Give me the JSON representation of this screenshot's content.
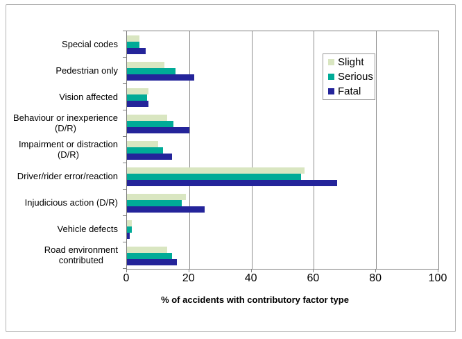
{
  "chart_data": {
    "type": "bar",
    "orientation": "horizontal",
    "title": "",
    "xlabel": "% of accidents with contributory factor type",
    "ylabel": "",
    "xlim": [
      0,
      100
    ],
    "x_ticks": [
      0,
      20,
      40,
      60,
      80,
      100
    ],
    "grid": "vertical",
    "legend_position": "inside-upper-right",
    "categories": [
      "Special codes",
      "Pedestrian only",
      "Vision affected",
      "Behaviour or inexperience (D/R)",
      "Impairment or distraction (D/R)",
      "Driver/rider error/reaction",
      "Injudicious action (D/R)",
      "Vehicle defects",
      "Road environment contributed"
    ],
    "category_display_lines": [
      [
        "Special codes"
      ],
      [
        "Pedestrian only"
      ],
      [
        "Vision affected"
      ],
      [
        "Behaviour or inexperience",
        "(D/R)"
      ],
      [
        "Impairment or distraction",
        "(D/R)"
      ],
      [
        "Driver/rider error/reaction"
      ],
      [
        "Injudicious action (D/R)"
      ],
      [
        "Vehicle defects"
      ],
      [
        "Road environment",
        "contributed"
      ]
    ],
    "series": [
      {
        "name": "Slight",
        "color": "#d9e6c1",
        "values": [
          4,
          12,
          7,
          13,
          10,
          57,
          19,
          1.5,
          13
        ]
      },
      {
        "name": "Serious",
        "color": "#00ab97",
        "values": [
          4,
          15.5,
          6.5,
          15,
          11.5,
          56,
          17.5,
          1.5,
          14.5
        ]
      },
      {
        "name": "Fatal",
        "color": "#24249a",
        "values": [
          6,
          21.5,
          7,
          20,
          14.5,
          67.5,
          25,
          1,
          16
        ]
      }
    ]
  },
  "colors": {
    "grid": "#8c8c8c",
    "plot_border": "#808080",
    "outer_frame": "#b3b3b3",
    "background": "#ffffff",
    "text": "#000000"
  }
}
